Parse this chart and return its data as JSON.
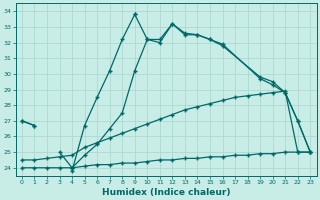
{
  "xlabel": "Humidex (Indice chaleur)",
  "bg_color": "#c8ece6",
  "grid_color": "#a8d4cc",
  "line_color": "#006868",
  "xlim": [
    -0.5,
    23.5
  ],
  "ylim": [
    23.5,
    34.5
  ],
  "yticks": [
    24,
    25,
    26,
    27,
    28,
    29,
    30,
    31,
    32,
    33,
    34
  ],
  "xticks": [
    0,
    1,
    2,
    3,
    4,
    5,
    6,
    7,
    8,
    9,
    10,
    11,
    12,
    13,
    14,
    15,
    16,
    17,
    18,
    19,
    20,
    21,
    22,
    23
  ],
  "curve1_segments": [
    {
      "x": [
        0,
        1
      ],
      "y": [
        27.0,
        26.7
      ]
    },
    {
      "x": [
        4,
        5,
        6,
        7,
        8,
        9
      ],
      "y": [
        23.8,
        26.7,
        28.5,
        30.2,
        32.2,
        33.8
      ]
    },
    {
      "x": [
        9,
        10,
        11,
        12,
        13,
        14,
        15,
        16,
        19,
        20,
        21,
        22,
        23
      ],
      "y": [
        33.8,
        32.2,
        32.2,
        33.2,
        32.5,
        32.5,
        32.2,
        31.8,
        29.8,
        29.5,
        28.8,
        27.0,
        25.0
      ]
    }
  ],
  "curve2_segments": [
    {
      "x": [
        0,
        1
      ],
      "y": [
        27.0,
        26.7
      ]
    },
    {
      "x": [
        3,
        4
      ],
      "y": [
        25.0,
        24.0
      ]
    },
    {
      "x": [
        4,
        5,
        6,
        7,
        8,
        9,
        10,
        11,
        12,
        13,
        14,
        15,
        16,
        19,
        20,
        21,
        22,
        23
      ],
      "y": [
        24.0,
        24.8,
        25.5,
        26.5,
        27.5,
        30.2,
        32.2,
        32.0,
        33.2,
        32.6,
        32.5,
        32.2,
        31.9,
        29.7,
        29.3,
        28.8,
        27.0,
        25.0
      ]
    }
  ],
  "curve3_x": [
    0,
    1,
    2,
    3,
    4,
    5,
    6,
    7,
    8,
    9,
    10,
    11,
    12,
    13,
    14,
    15,
    16,
    17,
    18,
    19,
    20,
    21,
    22,
    23
  ],
  "curve3_y": [
    24.5,
    24.5,
    24.6,
    24.7,
    24.8,
    25.3,
    25.6,
    25.9,
    26.2,
    26.5,
    26.8,
    27.1,
    27.4,
    27.7,
    27.9,
    28.1,
    28.3,
    28.5,
    28.6,
    28.7,
    28.8,
    28.9,
    25.0,
    25.0
  ],
  "curve4_x": [
    0,
    1,
    2,
    3,
    4,
    5,
    6,
    7,
    8,
    9,
    10,
    11,
    12,
    13,
    14,
    15,
    16,
    17,
    18,
    19,
    20,
    21,
    22,
    23
  ],
  "curve4_y": [
    24.0,
    24.0,
    24.0,
    24.0,
    24.0,
    24.1,
    24.2,
    24.2,
    24.3,
    24.3,
    24.4,
    24.5,
    24.5,
    24.6,
    24.6,
    24.7,
    24.7,
    24.8,
    24.8,
    24.9,
    24.9,
    25.0,
    25.0,
    25.0
  ]
}
